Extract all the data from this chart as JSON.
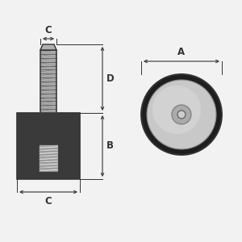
{
  "bg_color": "#f2f2f2",
  "line_color": "#333333",
  "dark_body_color": "#3a3a3a",
  "bolt_silver": "#b0b0b0",
  "bolt_dark": "#808080",
  "steel_face": "#c8c8c8",
  "steel_highlight": "#e0e0e0",
  "rubber_ring": "#1e1e1e",
  "insert_face": "#b0b0b0",
  "label_C_top": "C",
  "label_D": "D",
  "label_B": "B",
  "label_C_bot": "C",
  "label_A": "A",
  "font_size": 8.5,
  "font_weight": "bold"
}
